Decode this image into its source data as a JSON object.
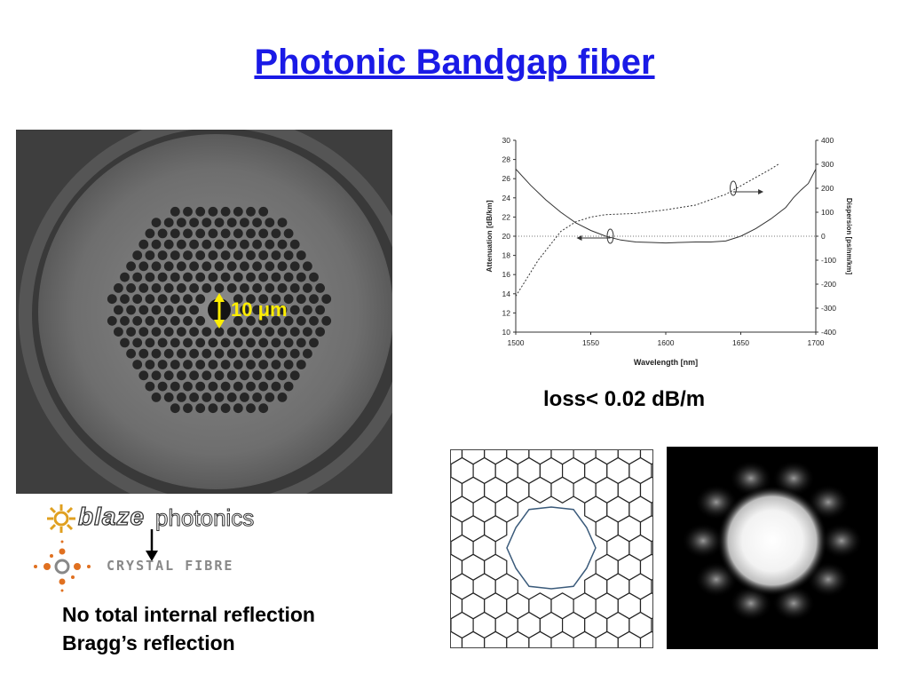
{
  "slide": {
    "title": "Photonic Bandgap fiber",
    "scale_label": "10 μm",
    "loss_caption": "loss< 0.02 dB/m",
    "logo_blaze_italic": "blaze",
    "logo_blaze_regular": "photonics",
    "logo_crystal": "CRYSTAL FIBRE",
    "notes": [
      "No total internal reflection",
      "Bragg’s reflection"
    ]
  },
  "colors": {
    "title": "#1a1ae6",
    "scale_arrow": "#ffee00",
    "logo_orange": "#e07020"
  },
  "icons": [
    "fiber-cross-section-image",
    "blaze-logo-icon",
    "crystal-fibre-logo-icon",
    "arrow-down-icon",
    "honeycomb-diagram",
    "mode-profile-image"
  ],
  "chart_data": {
    "type": "line",
    "xlabel": "Wavelength [nm]",
    "ylabel": "Attenuation [dB/km]",
    "y2label": "Dispersion [ps/nm/km]",
    "xlim": [
      1500,
      1700
    ],
    "ylim": [
      10,
      30
    ],
    "y2lim": [
      -400,
      400
    ],
    "x_ticks": [
      "1500",
      "1550",
      "1600",
      "1650",
      "1700"
    ],
    "y_ticks": [
      "10",
      "12",
      "14",
      "16",
      "18",
      "20",
      "22",
      "24",
      "26",
      "28",
      "30"
    ],
    "y2_ticks": [
      "-400",
      "-300",
      "-200",
      "-100",
      "0",
      "100",
      "200",
      "300",
      "400"
    ],
    "series": [
      {
        "axis": "left",
        "style": "solid",
        "x": [
          1500,
          1510,
          1520,
          1530,
          1540,
          1550,
          1560,
          1570,
          1580,
          1590,
          1600,
          1610,
          1620,
          1630,
          1640,
          1650,
          1660,
          1670,
          1680,
          1685,
          1690,
          1695,
          1700
        ],
        "y": [
          27,
          25.3,
          23.8,
          22.5,
          21.4,
          20.6,
          20.0,
          19.6,
          19.4,
          19.35,
          19.3,
          19.35,
          19.4,
          19.4,
          19.5,
          20.0,
          20.8,
          21.8,
          23.0,
          24.0,
          24.8,
          25.5,
          27.0
        ]
      },
      {
        "axis": "right",
        "style": "dotted",
        "x": [
          1500,
          1505,
          1510,
          1515,
          1520,
          1525,
          1530,
          1540,
          1550,
          1560,
          1580,
          1600,
          1620,
          1640,
          1650,
          1660,
          1670,
          1675
        ],
        "y": [
          -250,
          -200,
          -150,
          -100,
          -60,
          -20,
          20,
          60,
          80,
          90,
          95,
          110,
          130,
          175,
          210,
          245,
          280,
          300
        ]
      },
      {
        "axis": "right",
        "style": "dashed-zero",
        "x": [
          1500,
          1700
        ],
        "y": [
          0,
          0
        ]
      }
    ]
  }
}
